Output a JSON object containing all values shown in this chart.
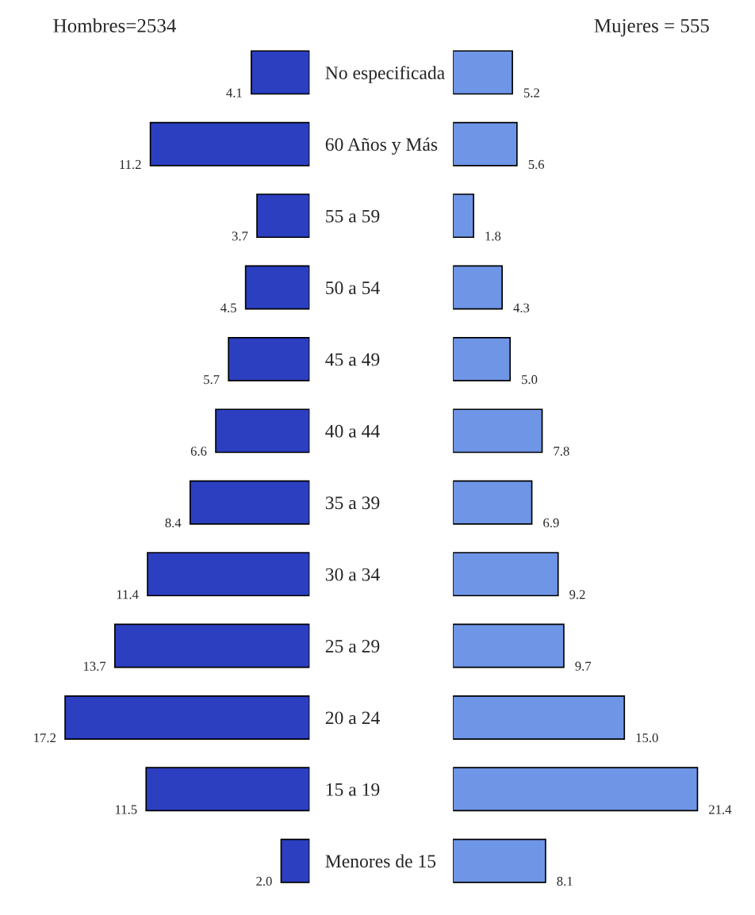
{
  "chart_data": [
    {
      "type": "bar",
      "orientation": "horizontal",
      "title": "Hombres=2534",
      "categories": [
        "No especificada",
        "60 Años y Más",
        "55 a 59",
        "50 a 54",
        "45 a 49",
        "40 a 44",
        "35 a 39",
        "30 a 34",
        "25 a 29",
        "20 a 24",
        "15 a 19",
        "Menores de 15"
      ],
      "values": [
        4.1,
        11.2,
        3.7,
        4.5,
        5.7,
        6.6,
        8.4,
        11.4,
        13.7,
        17.2,
        11.5,
        2.0
      ],
      "value_labels": [
        "4.1",
        "11.2",
        "3.7",
        "4.5",
        "5.7",
        "6.6",
        "8.4",
        "11.4",
        "13.7",
        "17.2",
        "11.5",
        "2.0"
      ],
      "color": "#2b3fc0",
      "tick_labels": "y"
    },
    {
      "type": "bar",
      "orientation": "horizontal",
      "title": "Mujeres = 555",
      "categories": [
        null,
        null,
        null,
        null,
        null,
        null,
        null,
        null,
        null,
        null,
        null,
        null
      ],
      "values": [
        5.2,
        5.6,
        1.8,
        4.3,
        5.0,
        7.8,
        6.9,
        9.2,
        9.7,
        15.0,
        21.4,
        8.1
      ],
      "value_labels": [
        "5.2",
        "5.6",
        "1.8",
        "4.3",
        "5.0",
        "7.8",
        "6.9",
        "9.2",
        "9.7",
        "15.0",
        "21.4",
        "8.1"
      ],
      "color": "#6e95e6",
      "tick_labels": false
    }
  ]
}
